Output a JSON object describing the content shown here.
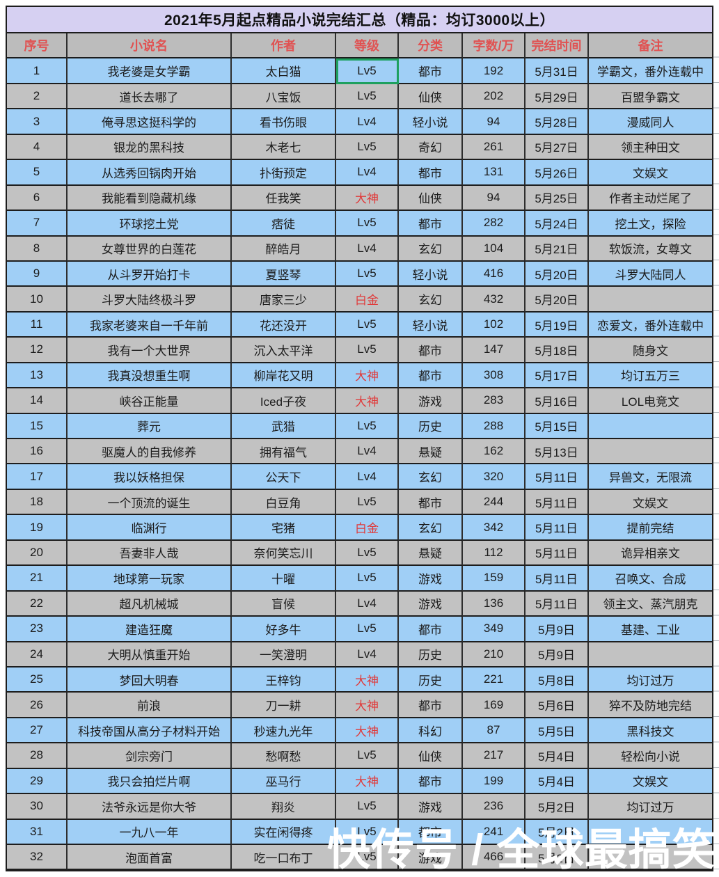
{
  "title": "2021年5月起点精品小说完结汇总（精品：均订3000以上）",
  "columns": [
    "序号",
    "小说名",
    "作者",
    "等级",
    "分类",
    "字数/万",
    "完结时间",
    "备注"
  ],
  "rows": [
    {
      "no": "1",
      "title": "我老婆是女学霸",
      "author": "太白猫",
      "level": "Lv5",
      "level_red": false,
      "selected": true,
      "category": "都市",
      "words": "192",
      "date": "5月31日",
      "note": "学霸文，番外连载中"
    },
    {
      "no": "2",
      "title": "道长去哪了",
      "author": "八宝饭",
      "level": "Lv5",
      "level_red": false,
      "selected": false,
      "category": "仙侠",
      "words": "202",
      "date": "5月29日",
      "note": "百盟争霸文"
    },
    {
      "no": "3",
      "title": "俺寻思这挺科学的",
      "author": "看书伤眼",
      "level": "Lv4",
      "level_red": false,
      "selected": false,
      "category": "轻小说",
      "words": "94",
      "date": "5月28日",
      "note": "漫威同人"
    },
    {
      "no": "4",
      "title": "银龙的黑科技",
      "author": "木老七",
      "level": "Lv5",
      "level_red": false,
      "selected": false,
      "category": "奇幻",
      "words": "261",
      "date": "5月27日",
      "note": "领主种田文"
    },
    {
      "no": "5",
      "title": "从选秀回锅肉开始",
      "author": "扑街预定",
      "level": "Lv4",
      "level_red": false,
      "selected": false,
      "category": "都市",
      "words": "131",
      "date": "5月26日",
      "note": "文娱文"
    },
    {
      "no": "6",
      "title": "我能看到隐藏机缘",
      "author": "任我笑",
      "level": "大神",
      "level_red": true,
      "selected": false,
      "category": "仙侠",
      "words": "94",
      "date": "5月25日",
      "note": "作者主动烂尾了"
    },
    {
      "no": "7",
      "title": "环球挖土党",
      "author": "痞徒",
      "level": "Lv5",
      "level_red": false,
      "selected": false,
      "category": "都市",
      "words": "282",
      "date": "5月24日",
      "note": "挖土文，探险"
    },
    {
      "no": "8",
      "title": "女尊世界的白莲花",
      "author": "醉皓月",
      "level": "Lv4",
      "level_red": false,
      "selected": false,
      "category": "玄幻",
      "words": "104",
      "date": "5月21日",
      "note": "软饭流，女尊文"
    },
    {
      "no": "9",
      "title": "从斗罗开始打卡",
      "author": "夏竖琴",
      "level": "Lv5",
      "level_red": false,
      "selected": false,
      "category": "轻小说",
      "words": "416",
      "date": "5月20日",
      "note": "斗罗大陆同人"
    },
    {
      "no": "10",
      "title": "斗罗大陆终极斗罗",
      "author": "唐家三少",
      "level": "白金",
      "level_red": true,
      "selected": false,
      "category": "玄幻",
      "words": "432",
      "date": "5月20日",
      "note": ""
    },
    {
      "no": "11",
      "title": "我家老婆来自一千年前",
      "author": "花还没开",
      "level": "Lv5",
      "level_red": false,
      "selected": false,
      "category": "轻小说",
      "words": "102",
      "date": "5月19日",
      "note": "恋爱文，番外连载中"
    },
    {
      "no": "12",
      "title": "我有一个大世界",
      "author": "沉入太平洋",
      "level": "Lv5",
      "level_red": false,
      "selected": false,
      "category": "都市",
      "words": "147",
      "date": "5月18日",
      "note": "随身文"
    },
    {
      "no": "13",
      "title": "我真没想重生啊",
      "author": "柳岸花又明",
      "level": "大神",
      "level_red": true,
      "selected": false,
      "category": "都市",
      "words": "308",
      "date": "5月17日",
      "note": "均订五万三"
    },
    {
      "no": "14",
      "title": "峡谷正能量",
      "author": "Iced子夜",
      "level": "大神",
      "level_red": true,
      "selected": false,
      "category": "游戏",
      "words": "283",
      "date": "5月16日",
      "note": "LOL电竞文"
    },
    {
      "no": "15",
      "title": "葬元",
      "author": "武猎",
      "level": "Lv5",
      "level_red": false,
      "selected": false,
      "category": "历史",
      "words": "288",
      "date": "5月15日",
      "note": ""
    },
    {
      "no": "16",
      "title": "驱魔人的自我修养",
      "author": "拥有福气",
      "level": "Lv4",
      "level_red": false,
      "selected": false,
      "category": "悬疑",
      "words": "162",
      "date": "5月13日",
      "note": ""
    },
    {
      "no": "17",
      "title": "我以妖格担保",
      "author": "公天下",
      "level": "Lv4",
      "level_red": false,
      "selected": false,
      "category": "玄幻",
      "words": "320",
      "date": "5月11日",
      "note": "异兽文，无限流"
    },
    {
      "no": "18",
      "title": "一个顶流的诞生",
      "author": "白豆角",
      "level": "Lv5",
      "level_red": false,
      "selected": false,
      "category": "都市",
      "words": "244",
      "date": "5月11日",
      "note": "文娱文"
    },
    {
      "no": "19",
      "title": "临渊行",
      "author": "宅猪",
      "level": "白金",
      "level_red": true,
      "selected": false,
      "category": "玄幻",
      "words": "342",
      "date": "5月11日",
      "note": "提前完结"
    },
    {
      "no": "20",
      "title": "吾妻非人哉",
      "author": "奈何笑忘川",
      "level": "Lv5",
      "level_red": false,
      "selected": false,
      "category": "悬疑",
      "words": "112",
      "date": "5月11日",
      "note": "诡异相亲文"
    },
    {
      "no": "21",
      "title": "地球第一玩家",
      "author": "十曜",
      "level": "Lv5",
      "level_red": false,
      "selected": false,
      "category": "游戏",
      "words": "159",
      "date": "5月11日",
      "note": "召唤文、合成"
    },
    {
      "no": "22",
      "title": "超凡机械城",
      "author": "盲候",
      "level": "Lv4",
      "level_red": false,
      "selected": false,
      "category": "游戏",
      "words": "136",
      "date": "5月11日",
      "note": "领主文、蒸汽朋克"
    },
    {
      "no": "23",
      "title": "建造狂魔",
      "author": "好多牛",
      "level": "Lv5",
      "level_red": false,
      "selected": false,
      "category": "都市",
      "words": "349",
      "date": "5月9日",
      "note": "基建、工业"
    },
    {
      "no": "24",
      "title": "大明从慎重开始",
      "author": "一笑澄明",
      "level": "Lv4",
      "level_red": false,
      "selected": false,
      "category": "历史",
      "words": "210",
      "date": "5月9日",
      "note": ""
    },
    {
      "no": "25",
      "title": "梦回大明春",
      "author": "王梓钧",
      "level": "大神",
      "level_red": true,
      "selected": false,
      "category": "历史",
      "words": "221",
      "date": "5月8日",
      "note": "均订过万"
    },
    {
      "no": "26",
      "title": "前浪",
      "author": "刀一耕",
      "level": "大神",
      "level_red": true,
      "selected": false,
      "category": "都市",
      "words": "169",
      "date": "5月6日",
      "note": "猝不及防地完结"
    },
    {
      "no": "27",
      "title": "科技帝国从高分子材料开始",
      "author": "秒速九光年",
      "level": "大神",
      "level_red": true,
      "selected": false,
      "category": "科幻",
      "words": "87",
      "date": "5月5日",
      "note": "黑科技文"
    },
    {
      "no": "28",
      "title": "剑宗旁门",
      "author": "愁啊愁",
      "level": "Lv5",
      "level_red": false,
      "selected": false,
      "category": "仙侠",
      "words": "217",
      "date": "5月4日",
      "note": "轻松向小说"
    },
    {
      "no": "29",
      "title": "我只会拍烂片啊",
      "author": "巫马行",
      "level": "大神",
      "level_red": true,
      "selected": false,
      "category": "都市",
      "words": "199",
      "date": "5月4日",
      "note": "文娱文"
    },
    {
      "no": "30",
      "title": "法爷永远是你大爷",
      "author": "翔炎",
      "level": "Lv5",
      "level_red": false,
      "selected": false,
      "category": "游戏",
      "words": "236",
      "date": "5月2日",
      "note": "均订过万"
    },
    {
      "no": "31",
      "title": "一九八一年",
      "author": "实在闲得疼",
      "level": "Lv5",
      "level_red": false,
      "selected": false,
      "category": "都市",
      "words": "241",
      "date": "5月2日",
      "note": ""
    },
    {
      "no": "32",
      "title": "泡面首富",
      "author": "吃一口布丁",
      "level": "Lv5",
      "level_red": false,
      "selected": false,
      "category": "游戏",
      "words": "466",
      "date": "5月2日",
      "note": ""
    }
  ],
  "watermark": "快传号 / 全球最搞笑",
  "colors": {
    "row_blue": "#a0cff6",
    "row_gray": "#c2c2c2",
    "header_bg": "#bcbcbc",
    "header_text": "#e05252",
    "title_bg": "#d6d0f2",
    "level_red": "#e03a3a",
    "accent_selected": "#1ea05f",
    "grid_line": "#1d1d1d"
  }
}
